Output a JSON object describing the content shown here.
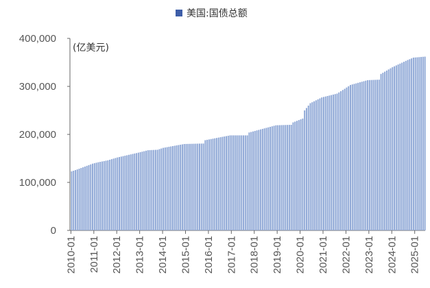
{
  "chart_data": {
    "type": "bar",
    "legend": {
      "label": "美国:国债总额",
      "position": "top-center",
      "color": "#3e5ea8"
    },
    "unit_label": "(亿美元)",
    "bar_color": "#8fa8d6",
    "grid": false,
    "ylim": [
      0,
      400000
    ],
    "yticks": [
      "400,000",
      "300,000",
      "200,000",
      "100,000",
      "0"
    ],
    "ytick_values": [
      400000,
      300000,
      200000,
      100000,
      0
    ],
    "xticks": [
      "2010-01",
      "2011-01",
      "2012-01",
      "2013-01",
      "2014-01",
      "2015-01",
      "2016-01",
      "2017-01",
      "2018-01",
      "2019-01",
      "2020-01",
      "2021-01",
      "2022-01",
      "2023-01",
      "2024-01",
      "2025-01"
    ],
    "start_month": "2010-01",
    "series": [
      {
        "name": "美国:国债总额",
        "anchors": [
          [
            "2010-01",
            123000
          ],
          [
            "2010-04",
            127000
          ],
          [
            "2010-12",
            139000
          ],
          [
            "2011-03",
            142000
          ],
          [
            "2011-08",
            146000
          ],
          [
            "2012-01",
            152000
          ],
          [
            "2012-12",
            162000
          ],
          [
            "2013-05",
            167000
          ],
          [
            "2013-10",
            168000
          ],
          [
            "2014-01",
            172000
          ],
          [
            "2014-12",
            180000
          ],
          [
            "2015-10",
            181000
          ],
          [
            "2015-11",
            188000
          ],
          [
            "2016-12",
            198000
          ],
          [
            "2017-09",
            198000
          ],
          [
            "2017-10",
            204000
          ],
          [
            "2018-12",
            219000
          ],
          [
            "2019-08",
            220000
          ],
          [
            "2019-09",
            225000
          ],
          [
            "2020-02",
            233000
          ],
          [
            "2020-03",
            250000
          ],
          [
            "2020-06",
            265000
          ],
          [
            "2020-12",
            277000
          ],
          [
            "2021-08",
            285000
          ],
          [
            "2021-12",
            295000
          ],
          [
            "2022-03",
            303000
          ],
          [
            "2022-12",
            313000
          ],
          [
            "2023-06",
            314000
          ],
          [
            "2023-07",
            326000
          ],
          [
            "2024-01",
            340000
          ],
          [
            "2024-09",
            355000
          ],
          [
            "2024-12",
            360000
          ],
          [
            "2025-06",
            362000
          ]
        ]
      }
    ]
  }
}
